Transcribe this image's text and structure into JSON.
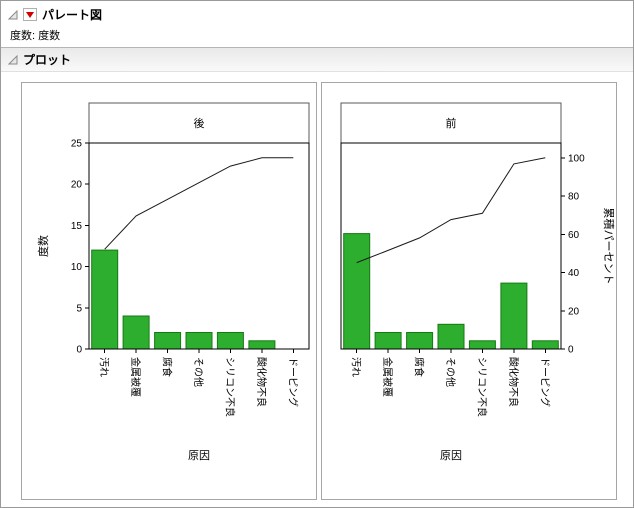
{
  "window": {
    "title": "パレート図",
    "subtitle_label": "度数: 度数",
    "section_title": "プロット"
  },
  "axes": {
    "freq_label": "度数",
    "percent_label": "累積パーセント",
    "x_label": "原因",
    "freq_ticks": [
      0,
      5,
      10,
      15,
      20,
      25
    ],
    "percent_ticks": [
      0,
      20,
      40,
      60,
      80,
      100
    ]
  },
  "colors": {
    "bar": "#2eae2e",
    "bar_border": "#157a15",
    "line": "#1a1a1a",
    "accent_red": "#d40000"
  },
  "chart_data": [
    {
      "type": "bar",
      "title": "後",
      "categories": [
        "汚れ",
        "金属被覆",
        "腐食",
        "その他",
        "シリコン不良",
        "酸化物不良",
        "ドーピング"
      ],
      "values": [
        12,
        4,
        2,
        2,
        2,
        1,
        0
      ],
      "cumulative_percent": [
        52.2,
        69.6,
        78.3,
        87.0,
        95.7,
        100.0,
        100.0
      ],
      "xlabel": "原因",
      "ylabel": "度数",
      "ylim": [
        0,
        25
      ],
      "show_left_axis": true,
      "show_right_axis": false,
      "legend": "none",
      "grid": false
    },
    {
      "type": "bar",
      "title": "前",
      "categories": [
        "汚れ",
        "金属被覆",
        "腐食",
        "その他",
        "シリコン不良",
        "酸化物不良",
        "ドーピング"
      ],
      "values": [
        14,
        2,
        2,
        3,
        1,
        8,
        1
      ],
      "cumulative_percent": [
        45.2,
        51.6,
        58.1,
        67.7,
        71.0,
        96.8,
        100.0
      ],
      "xlabel": "原因",
      "ylabel": "累積パーセント",
      "ylim": [
        0,
        25
      ],
      "y2lim": [
        0,
        100
      ],
      "show_left_axis": false,
      "show_right_axis": true,
      "legend": "none",
      "grid": false
    }
  ]
}
